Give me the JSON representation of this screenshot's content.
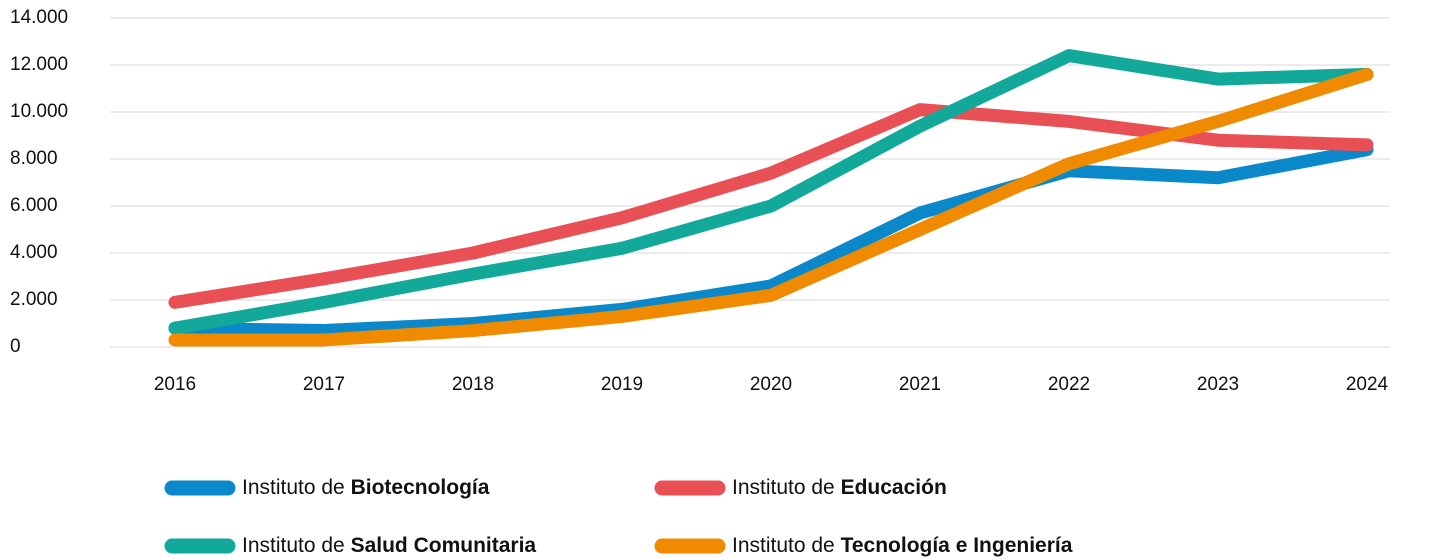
{
  "chart_data": {
    "type": "line",
    "x": [
      2016,
      2017,
      2018,
      2019,
      2020,
      2021,
      2022,
      2023,
      2024
    ],
    "series": [
      {
        "name": "Instituto de Biotecnología",
        "color": "#0a88c9",
        "values": [
          800,
          700,
          1000,
          1600,
          2600,
          5700,
          7500,
          7200,
          8400
        ]
      },
      {
        "name": "Instituto de Educación",
        "color": "#e85055",
        "values": [
          1900,
          2900,
          4000,
          5500,
          7400,
          10100,
          9600,
          8800,
          8600
        ]
      },
      {
        "name": "Instituto de Salud Comunitaria",
        "color": "#12a89a",
        "values": [
          800,
          1900,
          3100,
          4200,
          6000,
          9400,
          12400,
          11400,
          11600
        ]
      },
      {
        "name": "Instituto de Tecnología e Ingeniería",
        "color": "#f08a00",
        "values": [
          300,
          300,
          700,
          1300,
          2200,
          5000,
          7800,
          9600,
          11600
        ]
      }
    ],
    "xlim": [
      2016,
      2024
    ],
    "ylim": [
      0,
      14000
    ],
    "yticks": [
      0,
      {
        "value": 2000,
        "label": "2.000"
      },
      {
        "value": 4000,
        "label": "4.000"
      },
      {
        "value": 6000,
        "label": "6.000"
      },
      {
        "value": 8000,
        "label": "8.000"
      },
      {
        "value": 10000,
        "label": "10.000"
      },
      {
        "value": 12000,
        "label": "12.000"
      },
      {
        "value": 14000,
        "label": "14.000"
      }
    ],
    "grid": true
  }
}
